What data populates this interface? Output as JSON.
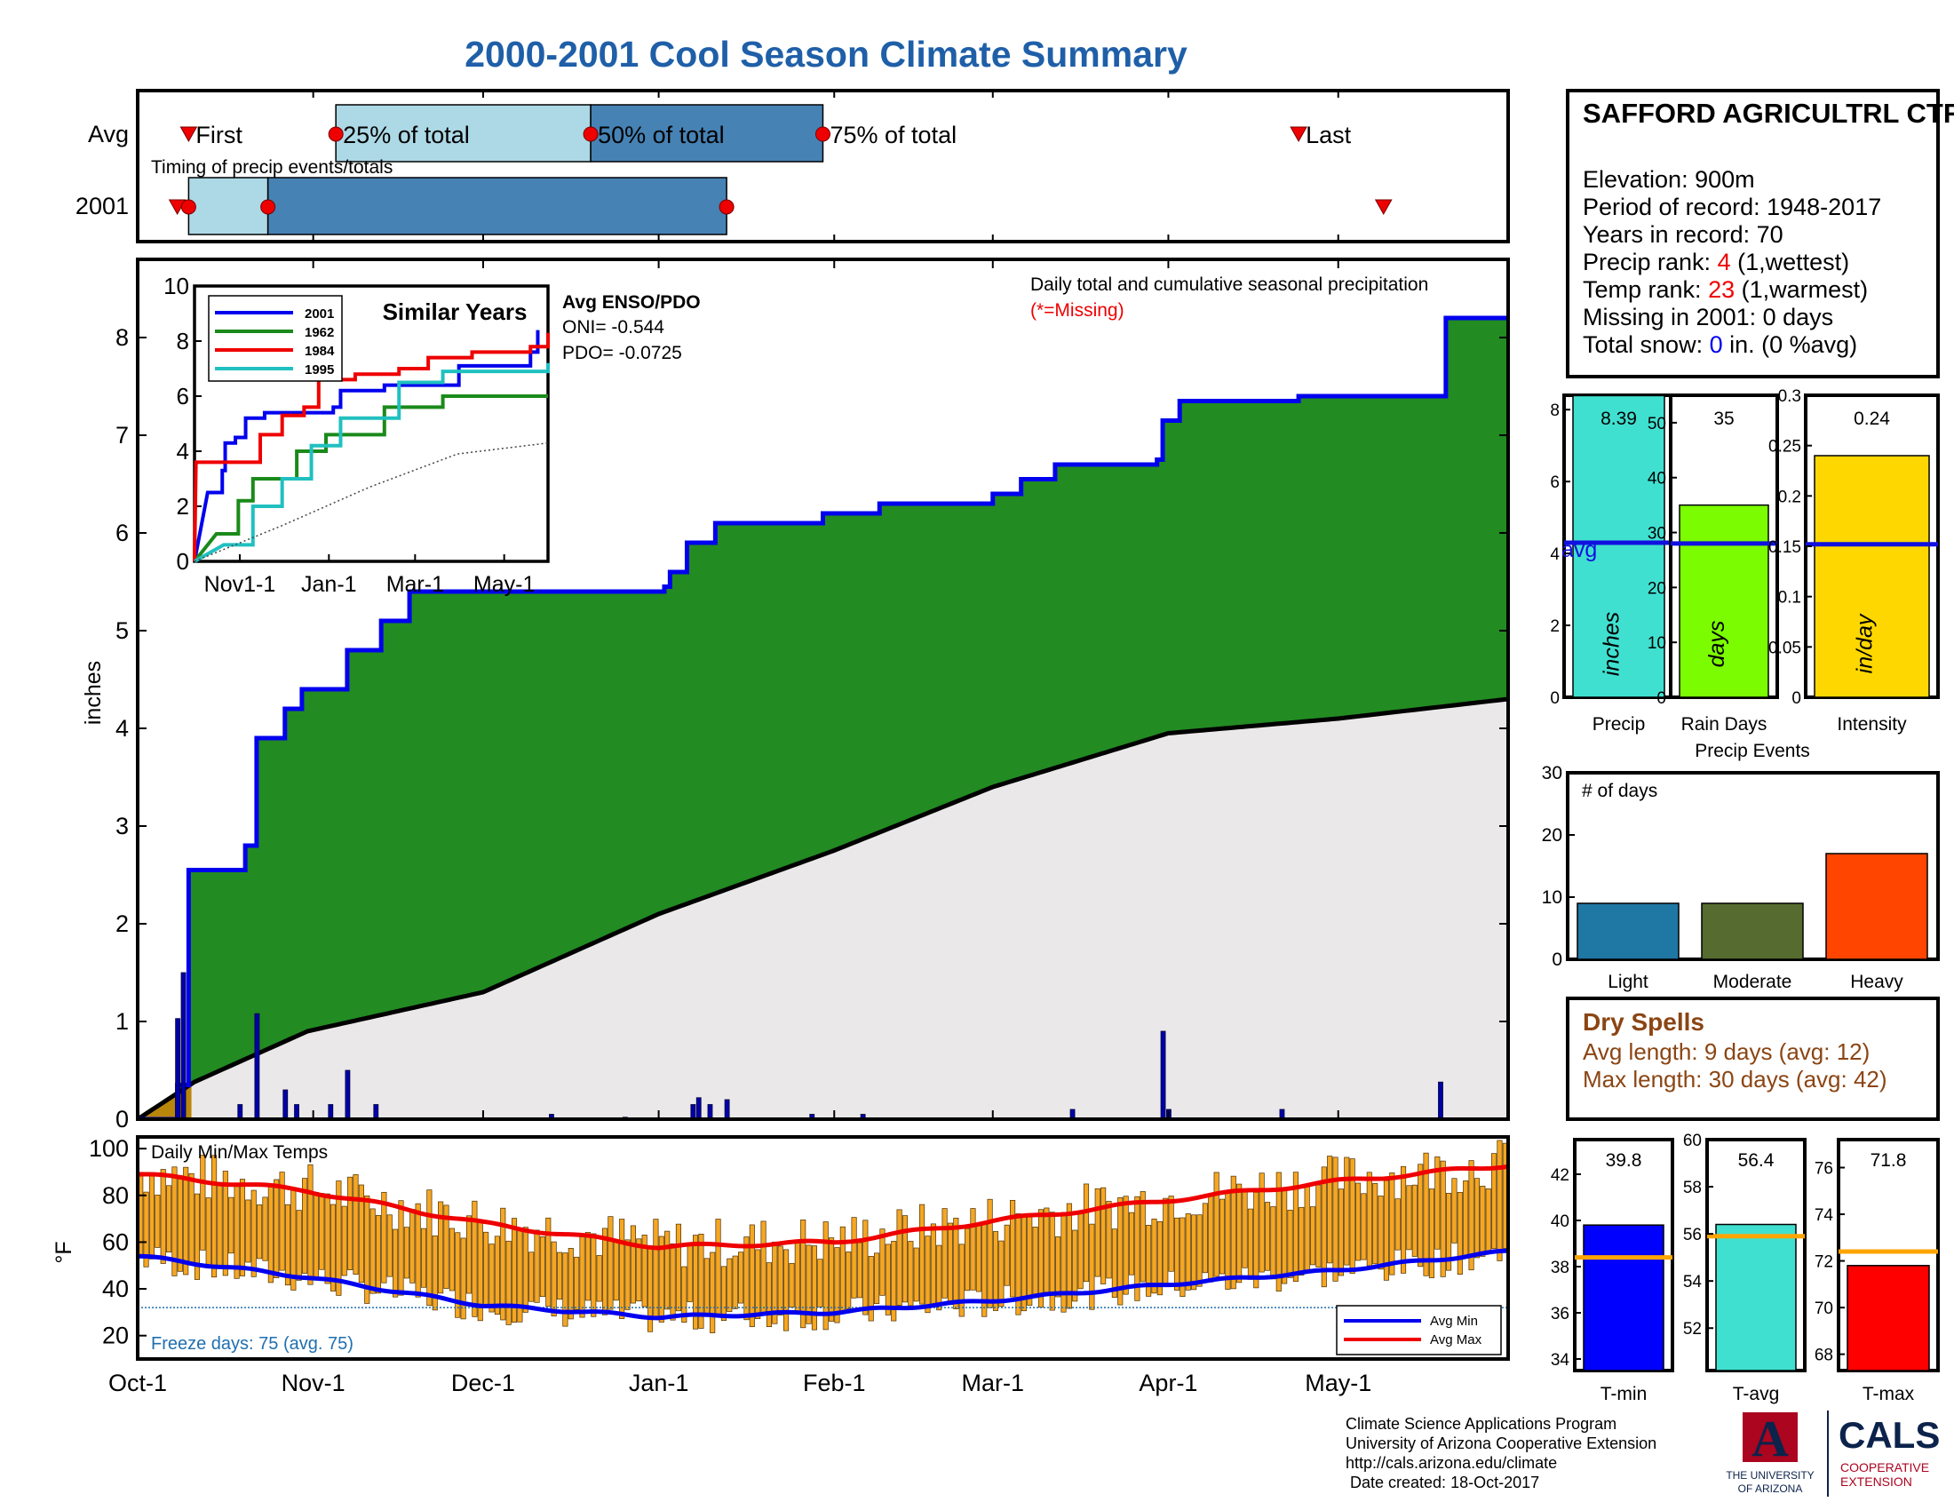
{
  "title": "2000-2001 Cool Season Climate Summary",
  "colors": {
    "title": "#1f5fa8",
    "precip_green": "#228b22",
    "avg_line": "#1010e0",
    "light_box": "#add8e6",
    "dark_box": "#4682b4",
    "marker_red": "#ee0000",
    "temp_bar": "#f5a623",
    "precip_bar": "#40e0d0",
    "rain_days_bar": "#7cfc00",
    "intensity_bar": "#ffd700",
    "light_event": "#1f77a4",
    "moderate_event": "#556b2f",
    "heavy_event": "#ff4500",
    "tmin_bar": "#0000ff",
    "tavg_bar": "#40e0d0",
    "tmax_bar": "#ff0000",
    "dry_spell_text": "#8b4513"
  },
  "timing": {
    "row_labels": [
      "Avg",
      "2001"
    ],
    "subtitle": "Timing of precip events/totals",
    "avg_labels": {
      "first": "First",
      "p25": "25% of total",
      "p50": "50% of total",
      "p75": "75% of total",
      "last": "Last"
    },
    "avg": {
      "first": 9,
      "p25": 35,
      "p50": 80,
      "p75": 121,
      "last": 205
    },
    "y2001": {
      "first": 9,
      "p25": 23,
      "p50": 104,
      "last": 220,
      "first_tri": 7
    }
  },
  "main_precip": {
    "ylabel": "inches",
    "ylim": [
      0,
      8.8
    ],
    "yticks": [
      0,
      1,
      2,
      3,
      4,
      5,
      6,
      7,
      8
    ],
    "legend_title": "Daily total and cumulative seasonal precipitation",
    "missing_note": "(*=Missing)",
    "enso_title": "Avg ENSO/PDO",
    "oni": "ONI= -0.544",
    "pdo": "PDO= -0.0725"
  },
  "inset": {
    "title": "Similar Years",
    "ylim": [
      0,
      10
    ],
    "yticks": [
      0,
      2,
      4,
      6,
      8,
      10
    ],
    "xtick_labels": [
      "Nov1-1",
      "Jan-1",
      "Mar-1",
      "May-1"
    ],
    "legend": [
      "2001",
      "1962",
      "1984",
      "1995"
    ],
    "legend_colors": [
      "#0000ee",
      "#1a8a1a",
      "#ee0000",
      "#20c0c0"
    ]
  },
  "temps": {
    "title": "Daily Min/Max Temps",
    "ylabel": "°F",
    "ylim": [
      10,
      105
    ],
    "yticks": [
      20,
      40,
      60,
      80,
      100
    ],
    "freeze_text": "Freeze days: 75 (avg. 75)",
    "legend": [
      "Avg Min",
      "Avg Max"
    ]
  },
  "x_axis": {
    "labels": [
      "Oct-1",
      "Nov-1",
      "Dec-1",
      "Jan-1",
      "Feb-1",
      "Mar-1",
      "Apr-1",
      "May-1"
    ],
    "days": [
      0,
      31,
      61,
      92,
      123,
      151,
      182,
      212
    ],
    "total_days": 242
  },
  "station": {
    "name": "SAFFORD AGRICULTRL CTR",
    "elevation": "Elevation: 900m",
    "period": "Period of record: 1948-2017",
    "years": "Years in record: 70",
    "precip_rank_label": "Precip rank: ",
    "precip_rank_value": "4",
    "precip_rank_suffix": " (1,wettest)",
    "temp_rank_label": "Temp rank: ",
    "temp_rank_value": "23",
    "temp_rank_suffix": " (1,warmest)",
    "missing": "Missing in 2001: 0 days",
    "snow_label": "Total snow: ",
    "snow_value": "0",
    "snow_suffix": " in. (0 %avg)"
  },
  "summary_bars": [
    {
      "label": "Precip",
      "unit": "inches",
      "value": 8.39,
      "avg": 4.3,
      "ymax": 8.4,
      "ticks": [
        0,
        2,
        4,
        6,
        8
      ],
      "value_text": "8.39",
      "avg_text": "avg"
    },
    {
      "label": "Rain Days",
      "unit": "days",
      "value": 35,
      "avg": 28,
      "ymax": 55,
      "ticks": [
        0,
        10,
        20,
        30,
        40,
        50
      ],
      "value_text": "35"
    },
    {
      "label": "Intensity",
      "unit": "in/day",
      "value": 0.24,
      "avg": 0.152,
      "ymax": 0.3,
      "ticks": [
        "0",
        "0.05",
        "0.1",
        "0.15",
        "0.2",
        "0.25",
        "0.3"
      ],
      "value_text": "0.24"
    }
  ],
  "precip_events": {
    "title": "Precip Events",
    "ylabel": "# of days",
    "ymax": 30,
    "yticks": [
      0,
      10,
      20,
      30
    ],
    "categories": [
      "Light",
      "Moderate",
      "Heavy"
    ],
    "values": [
      9,
      9,
      17
    ]
  },
  "dry_spells": {
    "title": "Dry Spells",
    "avg_length": "Avg length: 9 days (avg: 12)",
    "max_length": "Max length: 30 days (avg: 42)"
  },
  "temp_bars": [
    {
      "label": "T-min",
      "value": 39.8,
      "avg": 38.4,
      "ymin": 33.5,
      "ymax": 43.5,
      "ticks": [
        34,
        36,
        38,
        40,
        42
      ],
      "value_text": "39.8"
    },
    {
      "label": "T-avg",
      "value": 56.4,
      "avg": 55.9,
      "ymin": 50.2,
      "ymax": 60.0,
      "ticks": [
        52,
        54,
        56,
        58,
        60
      ],
      "value_text": "56.4"
    },
    {
      "label": "T-max",
      "value": 71.8,
      "avg": 72.4,
      "ymin": 67.3,
      "ymax": 77.2,
      "ticks": [
        68,
        70,
        72,
        74,
        76
      ],
      "value_text": "71.8"
    }
  ],
  "footer": {
    "lines": [
      "Climate Science Applications Program",
      "University of Arizona Cooperative Extension",
      "http://cals.arizona.edu/climate",
      " Date created: 18-Oct-2017"
    ],
    "logo_ua": "A",
    "ua_text1": "THE UNIVERSITY",
    "ua_text2": "OF ARIZONA",
    "cals": "CALS",
    "cals_sub1": "COOPERATIVE",
    "cals_sub2": "EXTENSION"
  },
  "chart_data": [
    {
      "type": "area",
      "title": "Daily total and cumulative seasonal precipitation",
      "ylabel": "inches",
      "ylim": [
        0,
        8.8
      ],
      "x_axis": "days since Oct-1",
      "series": [
        {
          "name": "2001 cumulative",
          "points": [
            [
              0,
              0
            ],
            [
              7,
              0.35
            ],
            [
              9,
              2.55
            ],
            [
              18,
              2.55
            ],
            [
              19,
              2.8
            ],
            [
              21,
              3.9
            ],
            [
              25,
              3.9
            ],
            [
              26,
              4.2
            ],
            [
              28,
              4.2
            ],
            [
              29,
              4.4
            ],
            [
              34,
              4.4
            ],
            [
              37,
              4.8
            ],
            [
              42,
              4.8
            ],
            [
              43,
              5.1
            ],
            [
              46,
              5.1
            ],
            [
              48,
              5.4
            ],
            [
              93,
              5.45
            ],
            [
              94,
              5.6
            ],
            [
              97,
              5.9
            ],
            [
              102,
              6.1
            ],
            [
              121,
              6.2
            ],
            [
              131,
              6.3
            ],
            [
              151,
              6.4
            ],
            [
              155,
              6.4
            ],
            [
              156,
              6.55
            ],
            [
              161,
              6.55
            ],
            [
              162,
              6.7
            ],
            [
              180,
              6.75
            ],
            [
              181,
              7.15
            ],
            [
              184,
              7.35
            ],
            [
              205,
              7.4
            ],
            [
              230,
              7.4
            ],
            [
              231,
              8.2
            ],
            [
              242,
              8.2
            ]
          ]
        },
        {
          "name": "Avg cumulative",
          "points": [
            [
              0,
              0
            ],
            [
              10,
              0.38
            ],
            [
              30,
              0.9
            ],
            [
              61,
              1.3
            ],
            [
              92,
              2.1
            ],
            [
              123,
              2.75
            ],
            [
              151,
              3.4
            ],
            [
              182,
              3.95
            ],
            [
              212,
              4.1
            ],
            [
              242,
              4.3
            ]
          ]
        }
      ],
      "daily_totals": [
        [
          7,
          1.03
        ],
        [
          8,
          1.5
        ],
        [
          18,
          0.15
        ],
        [
          21,
          1.08
        ],
        [
          26,
          0.3
        ],
        [
          28,
          0.15
        ],
        [
          34,
          0.15
        ],
        [
          37,
          0.5
        ],
        [
          42,
          0.15
        ],
        [
          73,
          0.05
        ],
        [
          86,
          0.02
        ],
        [
          98,
          0.15
        ],
        [
          99,
          0.22
        ],
        [
          101,
          0.15
        ],
        [
          104,
          0.2
        ],
        [
          119,
          0.05
        ],
        [
          128,
          0.05
        ],
        [
          165,
          0.1
        ],
        [
          181,
          0.9
        ],
        [
          182,
          0.1
        ],
        [
          202,
          0.1
        ],
        [
          230,
          0.38
        ]
      ]
    },
    {
      "type": "line",
      "title": "Similar Years",
      "ylim": [
        0,
        10
      ],
      "xtick_labels": [
        "Nov1-1",
        "Jan-1",
        "Mar-1",
        "May-1"
      ],
      "series": [
        {
          "name": "2001",
          "points": [
            [
              0,
              0
            ],
            [
              9,
              2.5
            ],
            [
              19,
              3.3
            ],
            [
              21,
              4.3
            ],
            [
              28,
              4.5
            ],
            [
              35,
              5.2
            ],
            [
              48,
              5.4
            ],
            [
              95,
              5.6
            ],
            [
              100,
              6.2
            ],
            [
              130,
              6.4
            ],
            [
              181,
              7.1
            ],
            [
              230,
              7.6
            ],
            [
              235,
              8.4
            ]
          ]
        },
        {
          "name": "1962",
          "points": [
            [
              0,
              0
            ],
            [
              15,
              1.0
            ],
            [
              30,
              2.2
            ],
            [
              40,
              3.0
            ],
            [
              70,
              4.0
            ],
            [
              90,
              4.6
            ],
            [
              130,
              5.6
            ],
            [
              170,
              6.0
            ],
            [
              242,
              6.0
            ]
          ]
        },
        {
          "name": "1984",
          "points": [
            [
              0,
              0
            ],
            [
              1,
              3.6
            ],
            [
              25,
              3.6
            ],
            [
              45,
              4.6
            ],
            [
              60,
              5.3
            ],
            [
              75,
              5.6
            ],
            [
              85,
              6.6
            ],
            [
              110,
              6.8
            ],
            [
              140,
              7.0
            ],
            [
              160,
              7.4
            ],
            [
              190,
              7.6
            ],
            [
              230,
              7.8
            ],
            [
              242,
              8.3
            ]
          ]
        },
        {
          "name": "1995",
          "points": [
            [
              0,
              0
            ],
            [
              20,
              0.6
            ],
            [
              40,
              2.0
            ],
            [
              60,
              3.0
            ],
            [
              80,
              4.2
            ],
            [
              100,
              5.2
            ],
            [
              140,
              6.5
            ],
            [
              170,
              6.9
            ],
            [
              242,
              7.2
            ]
          ]
        },
        {
          "name": "Avg",
          "points": [
            [
              0,
              0
            ],
            [
              60,
              1.3
            ],
            [
              120,
              2.7
            ],
            [
              180,
              3.9
            ],
            [
              242,
              4.3
            ]
          ]
        }
      ]
    },
    {
      "type": "bar",
      "title": "Daily Min/Max Temps",
      "ylabel": "°F",
      "ylim": [
        10,
        105
      ],
      "series": [
        {
          "name": "Avg Max",
          "points": [
            [
              0,
              89
            ],
            [
              30,
              82
            ],
            [
              61,
              68
            ],
            [
              92,
              58
            ],
            [
              123,
              60
            ],
            [
              151,
              69
            ],
            [
              182,
              78
            ],
            [
              212,
              86
            ],
            [
              242,
              93
            ]
          ]
        },
        {
          "name": "Avg Min",
          "points": [
            [
              0,
              54
            ],
            [
              30,
              45
            ],
            [
              61,
              33
            ],
            [
              92,
              28
            ],
            [
              123,
              30
            ],
            [
              151,
              35
            ],
            [
              182,
              42
            ],
            [
              212,
              48
            ],
            [
              242,
              56
            ]
          ]
        }
      ],
      "freeze_line": 32,
      "freeze_days": 75
    },
    {
      "type": "bar",
      "title": "Precip Events",
      "categories": [
        "Light",
        "Moderate",
        "Heavy"
      ],
      "values": [
        9,
        9,
        17
      ]
    },
    {
      "type": "bar",
      "categories": [
        "Precip",
        "Rain Days",
        "Intensity"
      ],
      "values": [
        8.39,
        35,
        0.24
      ],
      "averages": [
        4.3,
        28,
        0.152
      ]
    },
    {
      "type": "bar",
      "categories": [
        "T-min",
        "T-avg",
        "T-max"
      ],
      "values": [
        39.8,
        56.4,
        71.8
      ],
      "averages": [
        38.4,
        55.9,
        72.4
      ]
    }
  ]
}
